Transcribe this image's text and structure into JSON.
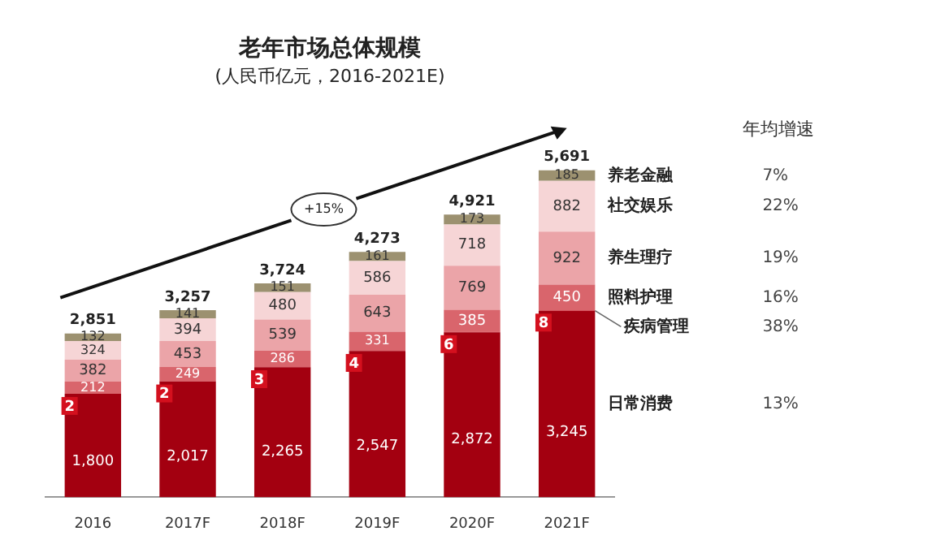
{
  "chart_data": {
    "type": "bar",
    "title": "老年市场总体规模",
    "subtitle": "(人民币亿元，2016-2021E)",
    "categories": [
      "2016",
      "2017F",
      "2018F",
      "2019F",
      "2020F",
      "2021F"
    ],
    "stacked": true,
    "data_labels": true,
    "grid": false,
    "legend": false,
    "tick_labels": "x",
    "series": [
      {
        "name": "日常消费",
        "color": "#a30010",
        "values": [
          1800,
          2017,
          2265,
          2547,
          2872,
          3245
        ],
        "value_labels": [
          "1,800",
          "2,017",
          "2,265",
          "2,547",
          "2,872",
          "3,245"
        ]
      },
      {
        "name": "疾病管理",
        "color": "#d4101e",
        "values": [
          2,
          2,
          3,
          4,
          6,
          8
        ]
      },
      {
        "name": "照料护理",
        "color": "#d9656c",
        "values": [
          212,
          249,
          286,
          331,
          385,
          450
        ]
      },
      {
        "name": "养生理疗",
        "color": "#eba4a8",
        "values": [
          382,
          453,
          539,
          643,
          769,
          922
        ]
      },
      {
        "name": "社交娱乐",
        "color": "#f6d5d6",
        "values": [
          324,
          394,
          480,
          586,
          718,
          882
        ]
      },
      {
        "name": "养老金融",
        "color": "#9c9170",
        "values": [
          132,
          141,
          151,
          161,
          173,
          185
        ]
      }
    ],
    "totals": [
      "2,851",
      "3,257",
      "3,724",
      "4,273",
      "4,921",
      "5,691"
    ],
    "annotations": [
      "+15%",
      "年均增速",
      "7%",
      "22%",
      "19%",
      "16%",
      "38%",
      "13%"
    ]
  }
}
